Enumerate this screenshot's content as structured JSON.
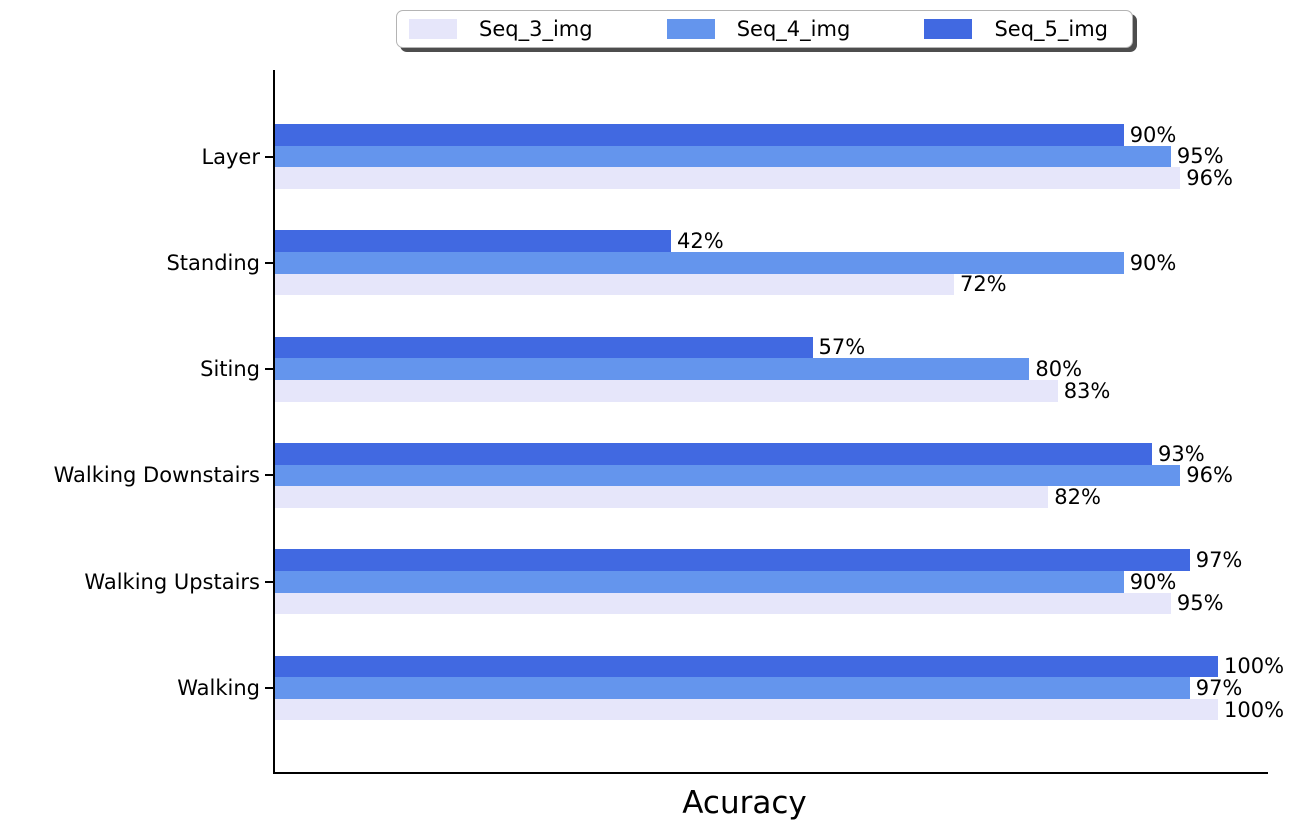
{
  "chart": {
    "background": "#ffffff",
    "axis_color": "#000000",
    "legend": {
      "position": "top-center",
      "items": [
        {
          "label": "Seq_3_img",
          "color": "#E6E6FA"
        },
        {
          "label": "Seq_4_img",
          "color": "#6495ED"
        },
        {
          "label": "Seq_5_img",
          "color": "#4169E1"
        }
      ]
    }
  },
  "chart_data": {
    "type": "bar",
    "orientation": "horizontal",
    "title": "",
    "xlabel": "Acuracy",
    "ylabel": "",
    "xlim": [
      0,
      105
    ],
    "grid": false,
    "value_suffix": "%",
    "bar_labels": true,
    "legend_position": "top-center",
    "categories_top_to_bottom": [
      "Layer",
      "Standing",
      "Siting",
      "Walking Downstairs",
      "Walking Upstairs",
      "Walking"
    ],
    "series_top_to_bottom_within_group": [
      {
        "name": "Seq_5_img",
        "color": "#4169E1",
        "values": [
          90,
          42,
          57,
          93,
          97,
          100
        ]
      },
      {
        "name": "Seq_4_img",
        "color": "#6495ED",
        "values": [
          95,
          90,
          80,
          96,
          90,
          97
        ]
      },
      {
        "name": "Seq_3_img",
        "color": "#E6E6FA",
        "values": [
          96,
          72,
          83,
          82,
          95,
          100
        ]
      }
    ]
  }
}
